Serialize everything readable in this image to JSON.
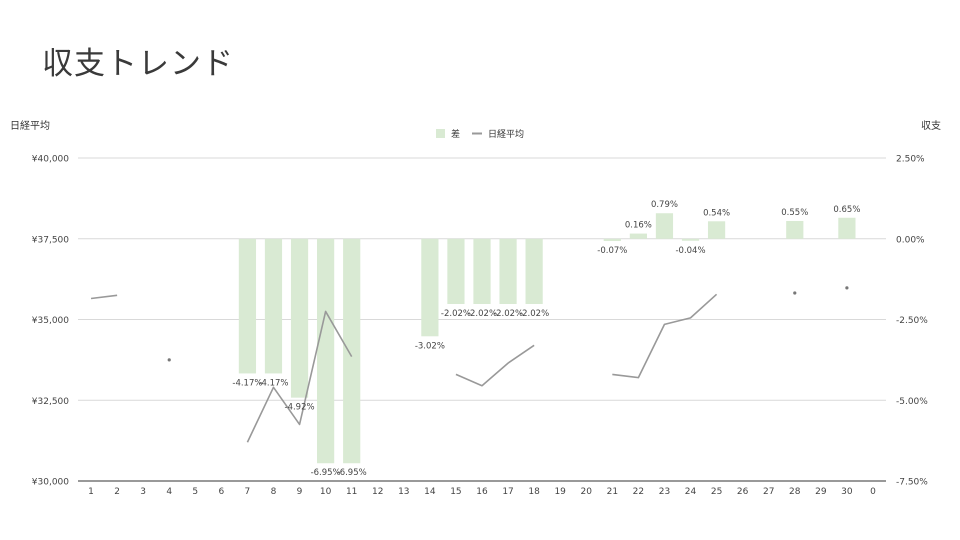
{
  "page": {
    "title": "収支トレンド"
  },
  "chart_data": {
    "type": "bar+line",
    "title": "",
    "left_axis_label": "日経平均",
    "right_axis_label": "収支",
    "x_categories": [
      "1",
      "2",
      "3",
      "4",
      "5",
      "6",
      "7",
      "8",
      "9",
      "10",
      "11",
      "12",
      "13",
      "14",
      "15",
      "16",
      "17",
      "18",
      "19",
      "20",
      "21",
      "22",
      "23",
      "24",
      "25",
      "26",
      "27",
      "28",
      "29",
      "30",
      "0"
    ],
    "left_axis": {
      "ylim": [
        30000,
        40000
      ],
      "ticks": [
        30000,
        32500,
        35000,
        37500,
        40000
      ],
      "tick_labels": [
        "¥30,000",
        "¥32,500",
        "¥35,000",
        "¥37,500",
        "¥40,000"
      ]
    },
    "right_axis": {
      "ylim": [
        -7.5,
        2.5
      ],
      "ticks": [
        -7.5,
        -5.0,
        -2.5,
        0.0,
        2.5
      ],
      "tick_labels": [
        "-7.50%",
        "-5.00%",
        "-2.50%",
        "0.00%",
        "2.50%"
      ]
    },
    "legend": {
      "position": "top-center",
      "items": [
        {
          "name": "差",
          "type": "bar",
          "color": "#d9ead3"
        },
        {
          "name": "日経平均",
          "type": "line",
          "color": "#999999"
        }
      ]
    },
    "series": [
      {
        "name": "差",
        "type": "bar",
        "axis": "right",
        "color": "#d9ead3",
        "values": [
          null,
          null,
          null,
          null,
          null,
          null,
          -4.17,
          -4.17,
          -4.92,
          -6.95,
          -6.95,
          null,
          null,
          -3.02,
          -2.02,
          -2.02,
          -2.02,
          -2.02,
          null,
          null,
          -0.07,
          0.16,
          0.79,
          -0.04,
          0.54,
          null,
          null,
          0.55,
          null,
          0.65,
          null
        ],
        "labels": [
          null,
          null,
          null,
          null,
          null,
          null,
          "-4.17%",
          "-4.17%",
          "-4.92%",
          "-6.95%",
          "-6.95%",
          null,
          null,
          "-3.02%",
          "-2.02%",
          "-2.02%",
          "-2.02%",
          "-2.02%",
          null,
          null,
          "-0.07%",
          "0.16%",
          "0.79%",
          "-0.04%",
          "0.54%",
          null,
          null,
          "0.55%",
          null,
          "0.65%",
          null
        ]
      },
      {
        "name": "日経平均",
        "type": "line",
        "axis": "left",
        "color": "#999999",
        "values": [
          35650,
          35750,
          null,
          33750,
          null,
          null,
          31200,
          32900,
          31750,
          35250,
          33850,
          null,
          null,
          null,
          33300,
          32950,
          33650,
          34200,
          null,
          null,
          33300,
          33200,
          34850,
          35050,
          35780,
          null,
          null,
          35820,
          null,
          35980,
          null
        ]
      }
    ]
  }
}
